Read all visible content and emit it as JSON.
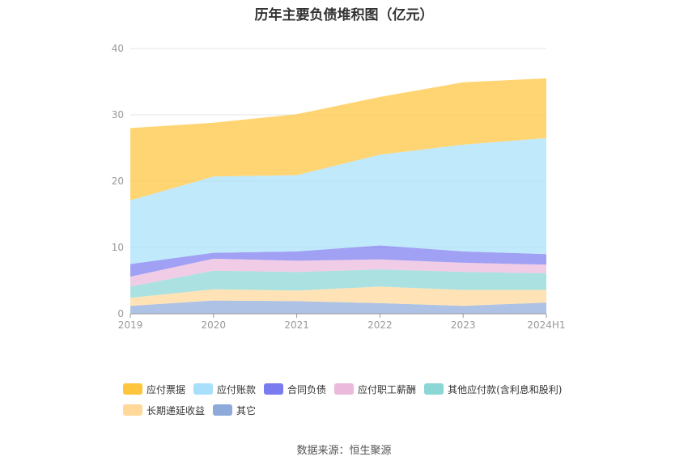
{
  "chart_data": {
    "type": "area",
    "stacked": true,
    "title": "历年主要负债堆积图（亿元）",
    "categories": [
      "2019",
      "2020",
      "2021",
      "2022",
      "2023",
      "2024H1"
    ],
    "y_ticks": [
      "0",
      "10",
      "20",
      "30",
      "40"
    ],
    "ylim": [
      0,
      40
    ],
    "grid": true,
    "legend_position": "bottom",
    "series": [
      {
        "name": "其它",
        "color": "#8eaadb",
        "values": [
          1.2,
          2.0,
          1.9,
          1.6,
          1.2,
          1.7
        ]
      },
      {
        "name": "长期递延收益",
        "color": "#ffd89a",
        "values": [
          1.2,
          1.7,
          1.6,
          2.5,
          2.4,
          1.9
        ]
      },
      {
        "name": "其他应付款(含利息和股利)",
        "color": "#8bd7d6",
        "values": [
          1.7,
          2.8,
          2.8,
          2.6,
          2.7,
          2.5
        ]
      },
      {
        "name": "应付职工薪酬",
        "color": "#eab9dc",
        "values": [
          1.5,
          1.8,
          1.7,
          1.5,
          1.4,
          1.3
        ]
      },
      {
        "name": "合同负债",
        "color": "#7b7bf0",
        "values": [
          1.9,
          0.9,
          1.4,
          2.1,
          1.7,
          1.6
        ]
      },
      {
        "name": "应付账款",
        "color": "#a8e0fb",
        "values": [
          9.6,
          11.5,
          11.5,
          13.7,
          16.1,
          17.5
        ]
      },
      {
        "name": "应付票据",
        "color": "#ffc53d",
        "values": [
          10.9,
          8.1,
          9.2,
          8.7,
          9.4,
          9.0
        ]
      }
    ],
    "legend_order": [
      "应付票据",
      "应付账款",
      "合同负债",
      "应付职工薪酬",
      "其他应付款(含利息和股利)",
      "长期递延收益",
      "其它"
    ],
    "source": "数据来源：恒生聚源"
  }
}
